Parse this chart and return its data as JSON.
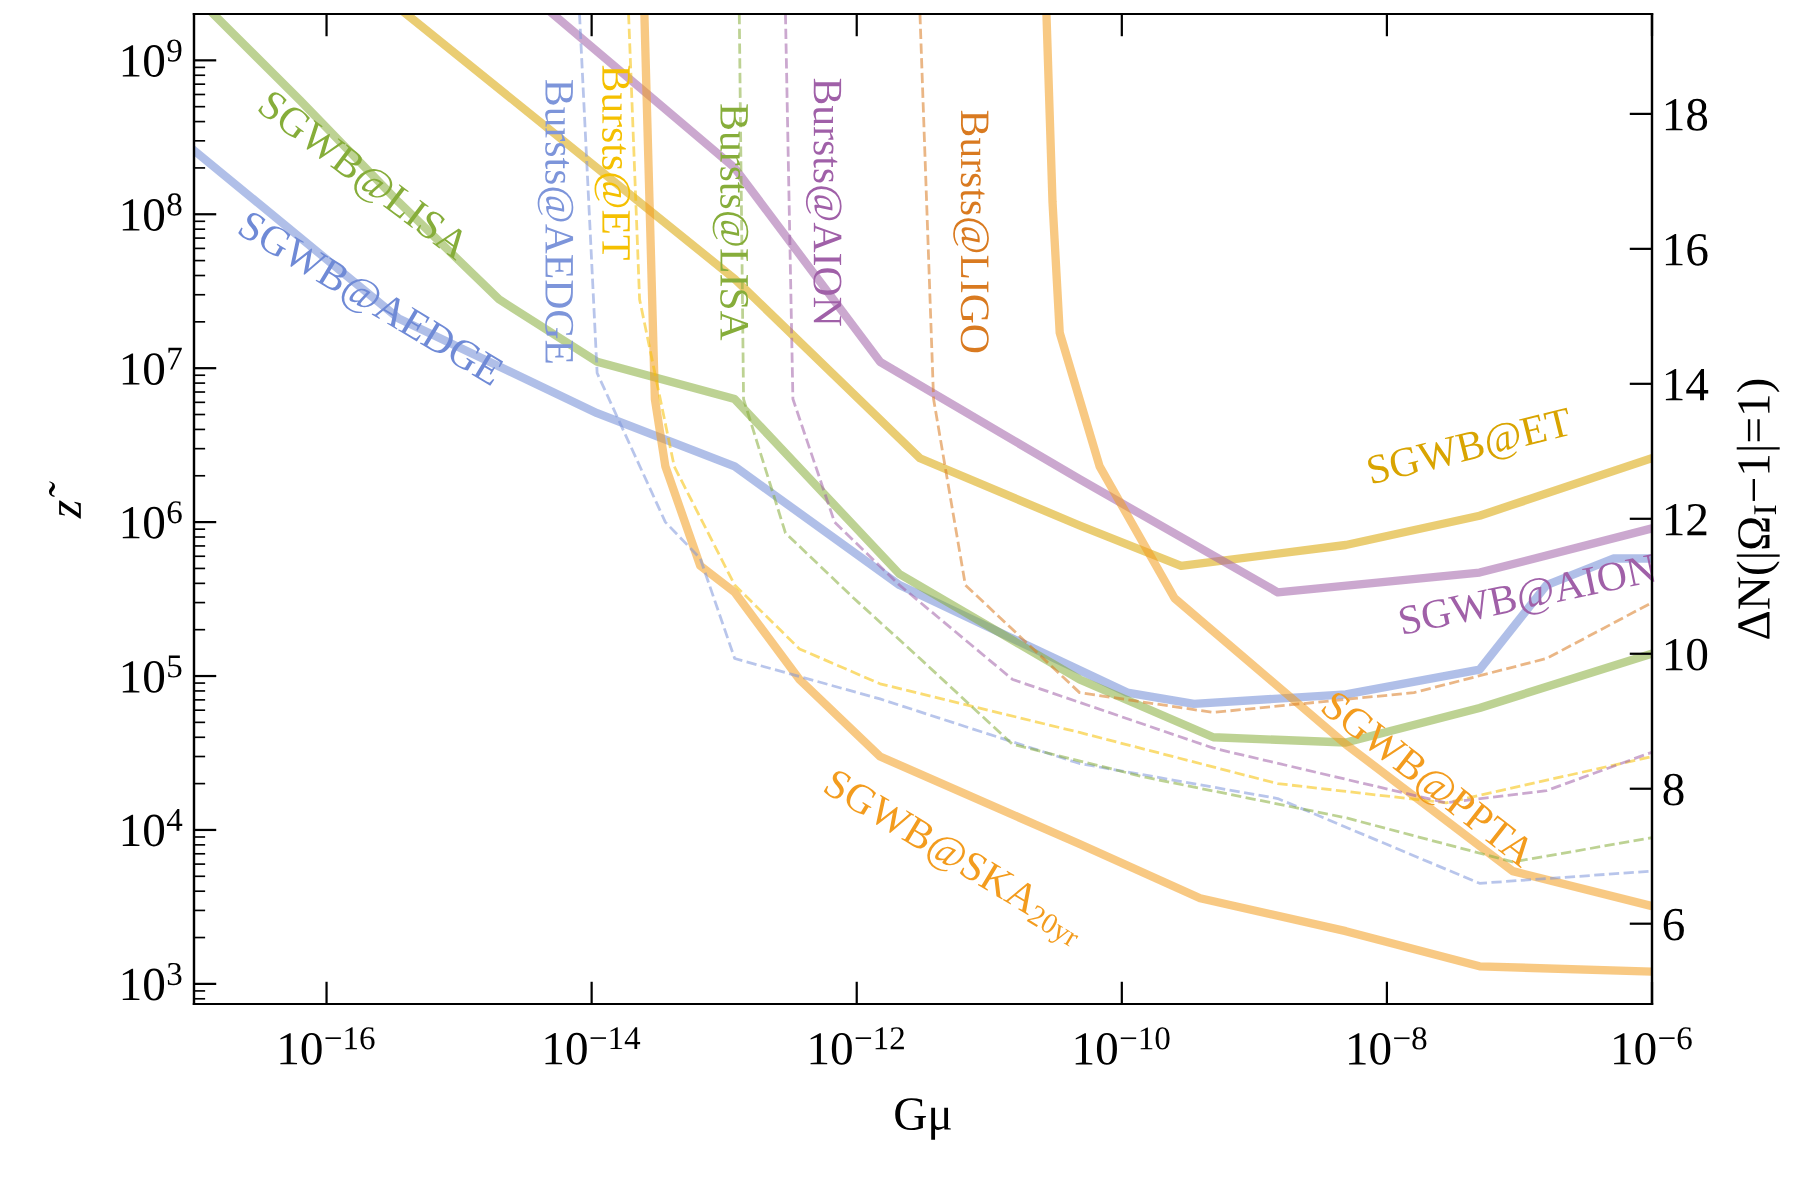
{
  "chart_data": {
    "type": "line",
    "xlabel": "Gμ",
    "ylabel": "z̃",
    "y2label": "ΔN(|Ω$_{I}$−1|=1)",
    "log": "xy",
    "grid": false,
    "xlim": [
      1e-17,
      1e-06
    ],
    "ylim": [
      740,
      2000000000.0
    ],
    "y2lim": [
      4.81,
      19.48
    ],
    "xticks": [
      {
        "value": 1e-16,
        "label": "10$^{−16}$"
      },
      {
        "value": 1e-14,
        "label": "10$^{−14}$"
      },
      {
        "value": 1e-12,
        "label": "10$^{−12}$"
      },
      {
        "value": 1e-10,
        "label": "10$^{−10}$"
      },
      {
        "value": 1e-08,
        "label": "10$^{−8}$"
      },
      {
        "value": 1e-06,
        "label": "10$^{−6}$"
      }
    ],
    "yticks": [
      {
        "value": 1000.0,
        "label": "10$^{3}$"
      },
      {
        "value": 10000.0,
        "label": "10$^{4}$"
      },
      {
        "value": 100000.0,
        "label": "10$^{5}$"
      },
      {
        "value": 1000000.0,
        "label": "10$^{6}$"
      },
      {
        "value": 10000000.0,
        "label": "10$^{7}$"
      },
      {
        "value": 100000000.0,
        "label": "10$^{8}$"
      },
      {
        "value": 1000000000.0,
        "label": "10$^{9}$"
      }
    ],
    "y2ticks": [
      6,
      8,
      10,
      12,
      14,
      16,
      18
    ],
    "series": [
      {
        "name": "SGWB@AEDGE",
        "color": "#6f8ad6",
        "line_style": "solid",
        "x": [
          1e-17,
          3.5e-16,
          1.1e-14,
          1.2e-13,
          2.1e-12,
          1.1e-10,
          3.5e-10,
          4.9e-09,
          5e-08,
          1.6e-07,
          5.1e-07,
          1e-06
        ],
        "values": [
          260000000.0,
          21000000.0,
          5100000.0,
          2300000.0,
          390000.0,
          78000.0,
          66000.0,
          76000.0,
          110000.0,
          390000.0,
          580000.0,
          580000.0
        ]
      },
      {
        "name": "SGWB@LISA",
        "color": "#86ad3a",
        "line_style": "solid",
        "x": [
          1.4e-17,
          6.3e-17,
          3.5e-16,
          2e-15,
          1.1e-14,
          1.2e-13,
          2.1e-12,
          4.8e-11,
          4.9e-10,
          4.9e-09,
          5e-08,
          1e-06
        ],
        "values": [
          2000000000.0,
          550000000.0,
          120000000.0,
          28000000.0,
          11000000.0,
          6300000.0,
          460000.0,
          95000.0,
          40000.0,
          37000.0,
          62000.0,
          140000.0
        ]
      },
      {
        "name": "SGWB@ET",
        "color": "#d9a400",
        "line_style": "solid",
        "x": [
          4e-16,
          1.1e-14,
          1.2e-13,
          3e-12,
          4.8e-11,
          2.8e-10,
          4.9e-09,
          5e-08,
          1e-06
        ],
        "values": [
          2000000000.0,
          200000000.0,
          38000000.0,
          2600000.0,
          950000.0,
          520000.0,
          710000.0,
          1100000.0,
          2600000.0
        ]
      },
      {
        "name": "SGWB@AION",
        "color": "#a060a8",
        "line_style": "solid",
        "x": [
          5.1e-15,
          1.2e-13,
          1.5e-12,
          4.8e-11,
          1.5e-09,
          5e-08,
          1e-06
        ],
        "values": [
          2000000000.0,
          200000000.0,
          11000000.0,
          1900000.0,
          350000.0,
          470000.0,
          910000.0
        ]
      },
      {
        "name": "SGWB@SKA$_{20yr}$",
        "color": "#f39c1e",
        "line_style": "solid",
        "x": [
          2.5e-14,
          3e-14,
          3.6e-14,
          6.6e-14,
          1.2e-13,
          3.7e-13,
          1.5e-12,
          4.8e-11,
          3.9e-10,
          4.9e-09,
          5e-08,
          1e-06
        ],
        "values": [
          2000000000.0,
          6300000.0,
          2300000.0,
          520000.0,
          350000.0,
          95000.0,
          30000.0,
          8100.0,
          3600.0,
          2200.0,
          1300.0,
          1200.0
        ]
      },
      {
        "name": "SGWB@PPTA",
        "color": "#f39c1e",
        "line_style": "solid",
        "x": [
          2.7e-11,
          3e-11,
          3.4e-11,
          6.8e-11,
          2.5e-10,
          4.9e-09,
          8.9e-08,
          1e-06
        ],
        "values": [
          2000000000.0,
          120000000.0,
          17000000.0,
          2300000.0,
          320000.0,
          36000.0,
          5400.0,
          3200.0
        ]
      },
      {
        "name": "Bursts@AEDGE",
        "color": "#7d95da",
        "line_style": "dashed",
        "x": [
          8.1e-15,
          1.1e-14,
          3.6e-14,
          6.6e-14,
          1.2e-13,
          1.5e-12,
          4.8e-11,
          1.5e-09,
          5e-08,
          1e-06
        ],
        "values": [
          2000000000.0,
          9300000.0,
          1000000.0,
          580000.0,
          130000.0,
          71000.0,
          27000.0,
          16000.0,
          4500.0,
          5400.0
        ]
      },
      {
        "name": "Bursts@ET",
        "color": "#f5c000",
        "line_style": "dashed",
        "x": [
          1.9e-14,
          2.3e-14,
          4.2e-14,
          1.2e-13,
          3.7e-13,
          1.5e-12,
          4.8e-11,
          1.5e-09,
          2.8e-08,
          1e-06
        ],
        "values": [
          2000000000.0,
          28000000.0,
          2300000.0,
          390000.0,
          150000.0,
          89000.0,
          43000.0,
          20000.0,
          15000.0,
          30000.0
        ]
      },
      {
        "name": "Bursts@LISA",
        "color": "#86ad3a",
        "line_style": "dashed",
        "x": [
          1.3e-13,
          1.4e-13,
          2.9e-13,
          9.5e-13,
          3e-12,
          1.5e-11,
          1.5e-10,
          4.9e-09,
          8.9e-08,
          1e-06
        ],
        "values": [
          2000000000.0,
          6300000.0,
          850000.0,
          320000.0,
          130000.0,
          36000.0,
          22000.0,
          12000.0,
          6200.0,
          8900.0
        ]
      },
      {
        "name": "Bursts@AION",
        "color": "#a060a8",
        "line_style": "dashed",
        "x": [
          2.9e-13,
          3.3e-13,
          6.8e-13,
          2.1e-12,
          1.5e-11,
          4.9e-10,
          2.8e-08,
          1.6e-07,
          1e-06
        ],
        "values": [
          2000000000.0,
          6300000.0,
          1000000.0,
          390000.0,
          95000.0,
          34000.0,
          15000.0,
          18000.0,
          32000.0
        ]
      },
      {
        "name": "Bursts@LIGO",
        "color": "#d97a20",
        "line_style": "dashed",
        "x": [
          3e-12,
          3.8e-12,
          6.6e-12,
          4.8e-11,
          4.9e-10,
          1.6e-08,
          1.6e-07,
          1e-06
        ],
        "values": [
          2000000000.0,
          6300000.0,
          390000.0,
          78000.0,
          58000.0,
          78000.0,
          130000.0,
          300000.0
        ]
      }
    ]
  }
}
